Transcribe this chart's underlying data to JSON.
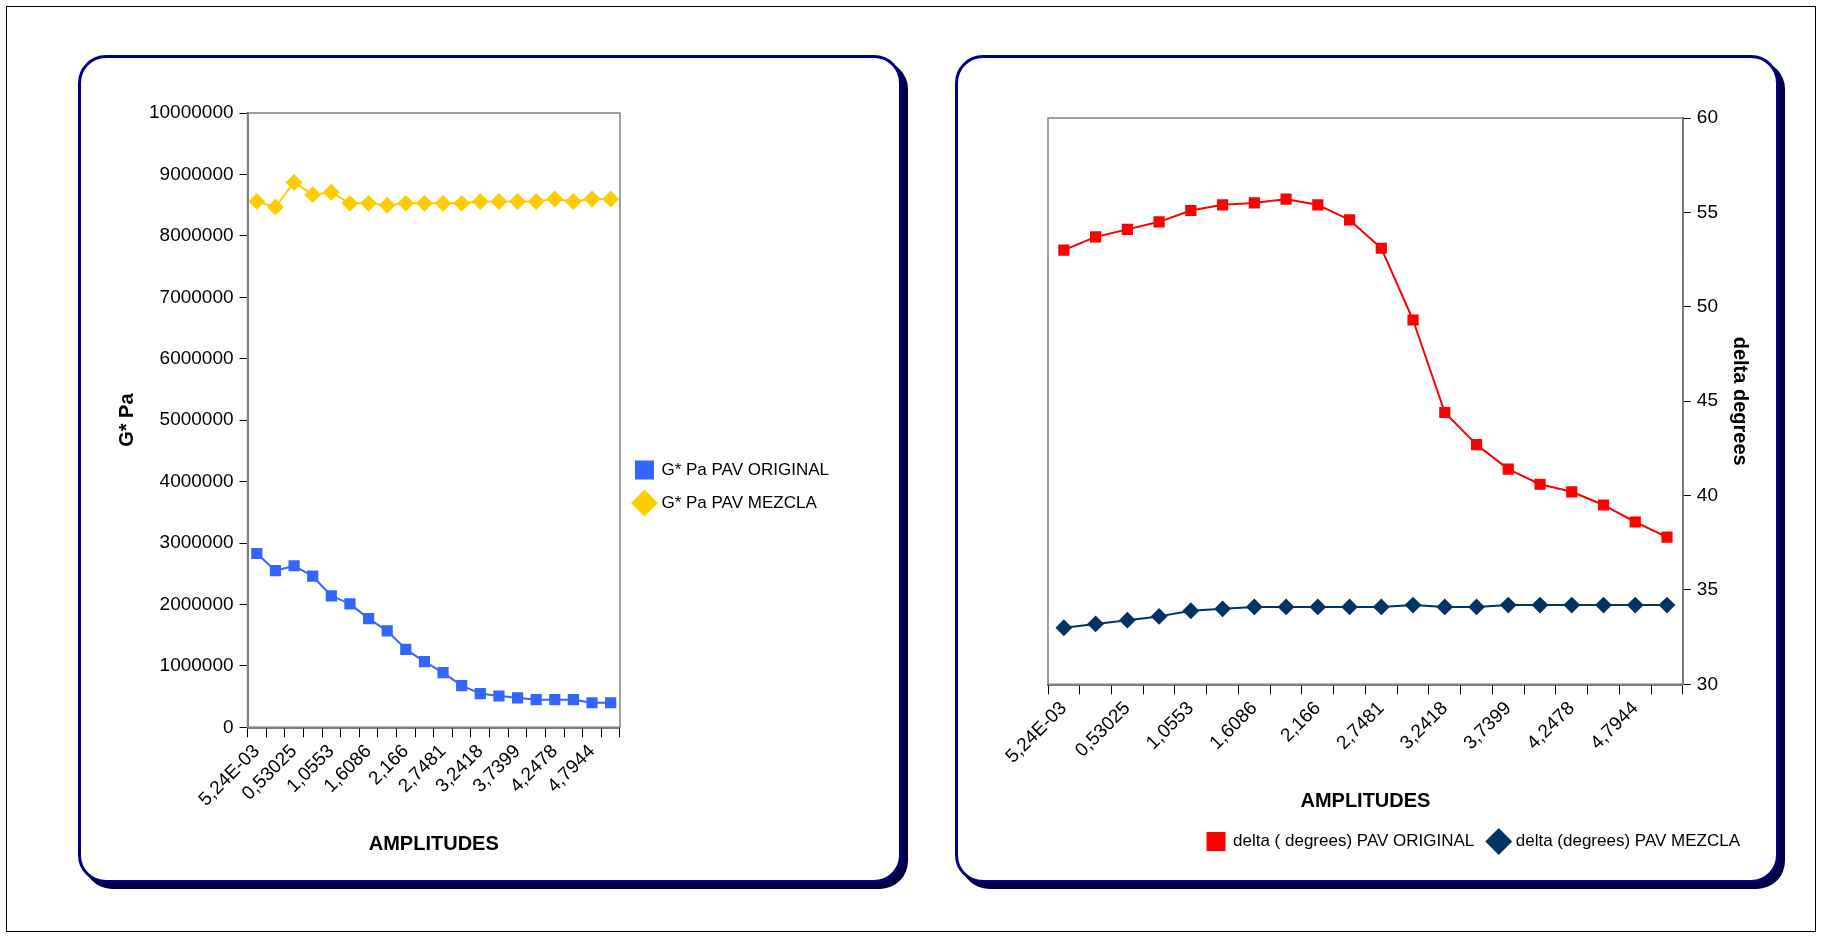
{
  "chart_data": [
    {
      "type": "line",
      "xlabel": "AMPLITUDES",
      "ylabel": "G* Pa",
      "categories": [
        "5,24E-03",
        null,
        "0,53025",
        null,
        "1,0553",
        null,
        "1,6086",
        null,
        "2,166",
        null,
        "2,7481",
        null,
        "3,2418",
        null,
        "3,7399",
        null,
        "4,2478",
        null,
        "4,7944",
        null
      ],
      "series": [
        {
          "name": "G* Pa PAV ORIGINAL",
          "color": "#3366ff",
          "marker": "square",
          "values": [
            2830000,
            2550000,
            2630000,
            2460000,
            2140000,
            2010000,
            1770000,
            1570000,
            1270000,
            1070000,
            890000,
            680000,
            550000,
            510000,
            480000,
            450000,
            450000,
            450000,
            400000,
            400000
          ]
        },
        {
          "name": "G* Pa PAV MEZCLA",
          "color": "#ffcc00",
          "marker": "diamond",
          "values": [
            8560000,
            8470000,
            8870000,
            8670000,
            8710000,
            8530000,
            8530000,
            8500000,
            8530000,
            8530000,
            8530000,
            8530000,
            8560000,
            8560000,
            8560000,
            8560000,
            8600000,
            8560000,
            8600000,
            8600000
          ]
        }
      ],
      "ylim": [
        0,
        10000000
      ],
      "yticks": [
        0,
        1000000,
        2000000,
        3000000,
        4000000,
        5000000,
        6000000,
        7000000,
        8000000,
        9000000,
        10000000
      ],
      "grid": false,
      "legend": "right",
      "line_style": "solid"
    },
    {
      "type": "line",
      "xlabel": "AMPLITUDES",
      "ylabel": "delta degrees",
      "categories": [
        "5,24E-03",
        null,
        "0,53025",
        null,
        "1,0553",
        null,
        "1,6086",
        null,
        "2,166",
        null,
        "2,7481",
        null,
        "3,2418",
        null,
        "3,7399",
        null,
        "4,2478",
        null,
        "4,7944",
        null
      ],
      "series": [
        {
          "name": "delta ( degrees) PAV ORIGINAL",
          "color": "#ff0000",
          "marker": "square",
          "values": [
            53.0,
            53.7,
            54.1,
            54.5,
            55.1,
            55.4,
            55.5,
            55.7,
            55.4,
            54.6,
            53.1,
            49.3,
            44.4,
            42.7,
            41.4,
            40.6,
            40.2,
            39.5,
            38.6,
            37.8
          ]
        },
        {
          "name": "delta (degrees) PAV MEZCLA",
          "color": "#003366",
          "marker": "diamond",
          "values": [
            33.0,
            33.2,
            33.4,
            33.6,
            33.9,
            34.0,
            34.1,
            34.1,
            34.1,
            34.1,
            34.1,
            34.2,
            34.1,
            34.1,
            34.2,
            34.2,
            34.2,
            34.2,
            34.2,
            34.2
          ]
        }
      ],
      "ylim": [
        30,
        60
      ],
      "yticks": [
        30,
        35,
        40,
        45,
        50,
        55,
        60
      ],
      "grid": false,
      "legend": "bottom right",
      "line_style": "solid"
    }
  ]
}
